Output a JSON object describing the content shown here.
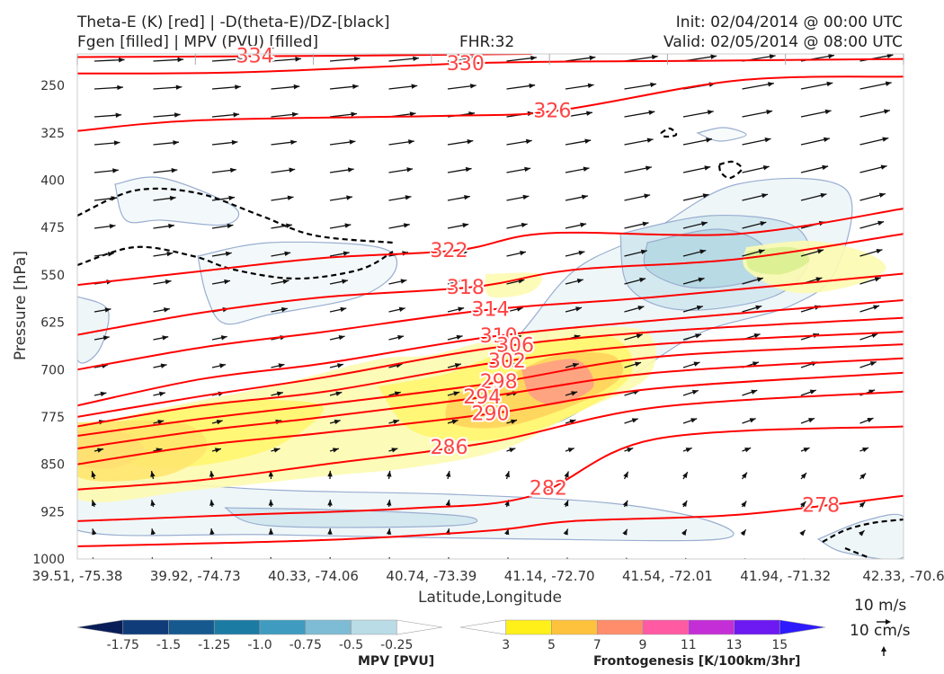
{
  "header": {
    "title_line1": "Theta-E (K) [red] | -D(theta-E)/DZ-[black]",
    "title_line2": "Fgen [filled] | MPV (PVU) [filled]",
    "fhr": "FHR:32",
    "init": "Init: 02/04/2014 @ 00:00 UTC",
    "valid": "Valid: 02/05/2014 @ 08:00 UTC"
  },
  "chart_data": {
    "type": "cross-section",
    "xlabel": "Latitude,Longitude",
    "ylabel": "Pressure [hPa]",
    "x_ticks": [
      "39.51, -75.38",
      "39.92, -74.73",
      "40.33, -74.06",
      "40.74, -73.39",
      "41.14, -72.70",
      "41.54, -72.01",
      "41.94, -71.32",
      "42.33, -70.6"
    ],
    "y_ticks": [
      250,
      325,
      400,
      475,
      550,
      625,
      700,
      775,
      850,
      925,
      1000
    ],
    "ylim": [
      200,
      1000
    ],
    "theta_e_contours": [
      {
        "value": 334,
        "label": "334",
        "points": [
          [
            0,
            205
          ],
          [
            0.3,
            203
          ],
          [
            0.55,
            200
          ]
        ]
      },
      {
        "value": 330,
        "label": "330",
        "points": [
          [
            0,
            231
          ],
          [
            0.2,
            229
          ],
          [
            0.5,
            214
          ],
          [
            0.75,
            211
          ],
          [
            1,
            208
          ]
        ]
      },
      {
        "value": 326,
        "label": "326",
        "points": [
          [
            0,
            322
          ],
          [
            0.15,
            305
          ],
          [
            0.45,
            298
          ],
          [
            0.58,
            290
          ],
          [
            0.8,
            242
          ],
          [
            1,
            236
          ]
        ]
      },
      {
        "value": 322,
        "label": "322",
        "points": [
          [
            0,
            566
          ],
          [
            0.15,
            544
          ],
          [
            0.3,
            523
          ],
          [
            0.46,
            511
          ],
          [
            0.57,
            484
          ],
          [
            0.8,
            485
          ],
          [
            1,
            445
          ]
        ]
      },
      {
        "value": 318,
        "label": "318",
        "points": [
          [
            0,
            645
          ],
          [
            0.15,
            610
          ],
          [
            0.3,
            585
          ],
          [
            0.48,
            569
          ],
          [
            0.6,
            542
          ],
          [
            0.8,
            525
          ],
          [
            1,
            485
          ]
        ]
      },
      {
        "value": 314,
        "label": "314",
        "points": [
          [
            0,
            700
          ],
          [
            0.15,
            665
          ],
          [
            0.3,
            640
          ],
          [
            0.5,
            605
          ],
          [
            0.7,
            585
          ],
          [
            1,
            548
          ]
        ]
      },
      {
        "value": 310,
        "label": "310",
        "points": [
          [
            0,
            757
          ],
          [
            0.15,
            715
          ],
          [
            0.3,
            690
          ],
          [
            0.5,
            648
          ],
          [
            0.7,
            622
          ],
          [
            1,
            590
          ]
        ]
      },
      {
        "value": 306,
        "label": "306",
        "points": [
          [
            0,
            775
          ],
          [
            0.15,
            742
          ],
          [
            0.3,
            712
          ],
          [
            0.5,
            666
          ],
          [
            0.7,
            640
          ],
          [
            1,
            618
          ]
        ]
      },
      {
        "value": 302,
        "label": "302",
        "points": [
          [
            0,
            790
          ],
          [
            0.15,
            757
          ],
          [
            0.3,
            735
          ],
          [
            0.5,
            690
          ],
          [
            0.7,
            660
          ],
          [
            1,
            640
          ]
        ]
      },
      {
        "value": 298,
        "label": "298",
        "points": [
          [
            0,
            805
          ],
          [
            0.15,
            778
          ],
          [
            0.3,
            755
          ],
          [
            0.5,
            722
          ],
          [
            0.7,
            680
          ],
          [
            1,
            660
          ]
        ]
      },
      {
        "value": 294,
        "label": "294",
        "points": [
          [
            0,
            825
          ],
          [
            0.15,
            797
          ],
          [
            0.3,
            775
          ],
          [
            0.5,
            742
          ],
          [
            0.7,
            705
          ],
          [
            1,
            682
          ]
        ]
      },
      {
        "value": 290,
        "label": "290",
        "points": [
          [
            0,
            850
          ],
          [
            0.15,
            820
          ],
          [
            0.3,
            800
          ],
          [
            0.5,
            770
          ],
          [
            0.7,
            730
          ],
          [
            1,
            705
          ]
        ]
      },
      {
        "value": 286,
        "label": "286",
        "points": [
          [
            0,
            890
          ],
          [
            0.15,
            875
          ],
          [
            0.3,
            850
          ],
          [
            0.5,
            815
          ],
          [
            0.7,
            760
          ],
          [
            1,
            735
          ]
        ]
      },
      {
        "value": 282,
        "label": "282",
        "points": [
          [
            0,
            940
          ],
          [
            0.2,
            930
          ],
          [
            0.4,
            920
          ],
          [
            0.55,
            900
          ],
          [
            0.7,
            810
          ],
          [
            1,
            790
          ]
        ]
      },
      {
        "value": 278,
        "label": "278",
        "points": [
          [
            0,
            980
          ],
          [
            0.3,
            970
          ],
          [
            0.5,
            955
          ],
          [
            0.6,
            940
          ],
          [
            0.8,
            930
          ],
          [
            1,
            900
          ]
        ]
      }
    ],
    "mpv_colorbar": {
      "label": "MPV [PVU]",
      "ticks": [
        "-1.75",
        "-1.5",
        "-1.25",
        "-1.0",
        "-0.75",
        "-0.5",
        "-0.25"
      ],
      "colors": [
        "#081d58",
        "#103c7a",
        "#15598f",
        "#1c7ba3",
        "#3f9cc0",
        "#7dbcd4",
        "#b9dce6",
        "#ffffff"
      ]
    },
    "fgen_colorbar": {
      "label": "Frontogenesis [K/100km/3hr]",
      "ticks": [
        "3",
        "5",
        "7",
        "9",
        "11",
        "13",
        "15"
      ],
      "colors": [
        "#ffffff",
        "#fff01a",
        "#ffc23d",
        "#ff8c6b",
        "#ff5aa2",
        "#c42ed6",
        "#6d19f2",
        "#2d1aff"
      ]
    },
    "wind_reference": [
      "10 m/s",
      "10 cm/s"
    ]
  },
  "colors": {
    "theta_e": "#ff0000",
    "theta_e_label": "#ff4444",
    "dthetae_dz": "#000000",
    "mpv_outline": "#9aaed0"
  }
}
